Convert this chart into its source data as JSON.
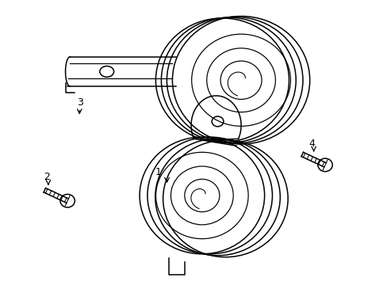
{
  "background_color": "#ffffff",
  "line_color": "#000000",
  "line_width": 1.1,
  "figsize": [
    4.89,
    3.6
  ],
  "dpi": 100,
  "xlim": [
    0,
    489
  ],
  "ylim": [
    0,
    360
  ]
}
